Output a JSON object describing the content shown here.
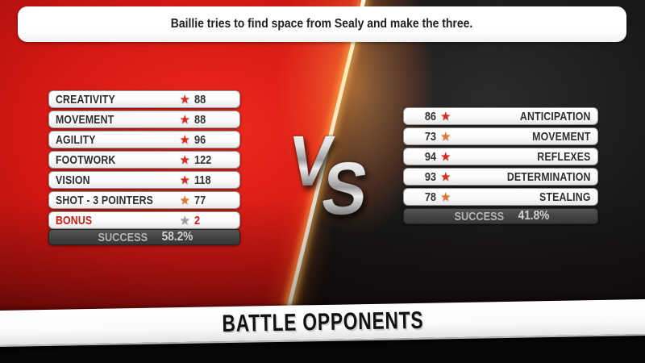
{
  "banner": {
    "text": "Baillie tries to find space from Sealy and make the three."
  },
  "vs_emblem": {
    "v": "V",
    "s": "S"
  },
  "left_panel": {
    "stats": [
      {
        "label": "CREATIVITY",
        "value": "88",
        "star": "red"
      },
      {
        "label": "MOVEMENT",
        "value": "88",
        "star": "red"
      },
      {
        "label": "AGILITY",
        "value": "96",
        "star": "red"
      },
      {
        "label": "FOOTWORK",
        "value": "122",
        "star": "red"
      },
      {
        "label": "VISION",
        "value": "118",
        "star": "red"
      },
      {
        "label": "SHOT - 3 POINTERS",
        "value": "77",
        "star": "orange"
      },
      {
        "label": "BONUS",
        "value": "2",
        "star": "gray",
        "highlight": true
      }
    ],
    "success": {
      "label": "SUCCESS",
      "value": "58.2%"
    }
  },
  "right_panel": {
    "stats": [
      {
        "label": "ANTICIPATION",
        "value": "86",
        "star": "red"
      },
      {
        "label": "MOVEMENT",
        "value": "73",
        "star": "orange"
      },
      {
        "label": "REFLEXES",
        "value": "94",
        "star": "red"
      },
      {
        "label": "DETERMINATION",
        "value": "93",
        "star": "red"
      },
      {
        "label": "STEALING",
        "value": "78",
        "star": "orange"
      }
    ],
    "success": {
      "label": "SUCCESS",
      "value": "41.8%"
    }
  },
  "footer": {
    "title": "BATTLE OPPONENTS"
  },
  "icons": {
    "star": "★"
  },
  "colors": {
    "star_red": "#dc2a1a",
    "star_orange": "#e4762a",
    "star_gray": "#9e9e9e",
    "bonus_text": "#cf1812",
    "red_bg": "#d21713",
    "dark_bg": "#121212",
    "divider_glow": "#ffcf6e"
  }
}
